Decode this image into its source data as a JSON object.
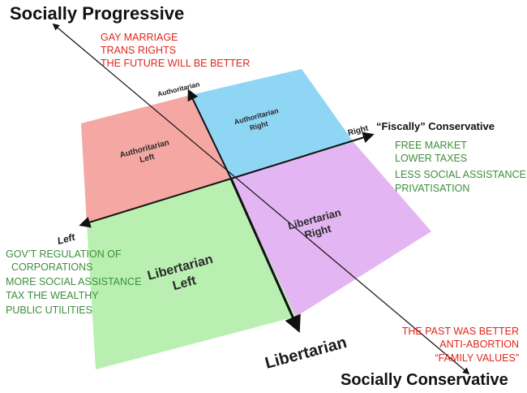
{
  "headings": {
    "top": "Socially Progressive",
    "bottom": "Socially Conservative",
    "right_axis": "“Fiscally” Conservative"
  },
  "axis_labels": {
    "authoritarian": "Authoritarian",
    "right": "Right",
    "left": "Left",
    "libertarian": "Libertarian"
  },
  "quadrants": {
    "authoritarian_left": {
      "line1": "Authoritarian",
      "line2": "Left",
      "color": "#f4a7a3"
    },
    "authoritarian_right": {
      "line1": "Authoritarian",
      "line2": "Right",
      "color": "#8fd6f4"
    },
    "libertarian_left": {
      "line1": "Libertarian",
      "line2": "Left",
      "color": "#b9f0b1"
    },
    "libertarian_right": {
      "line1": "Libertarian",
      "line2": "Right",
      "color": "#e3b5f2"
    }
  },
  "notes": {
    "progressive": {
      "color": "#e0261b",
      "lines": [
        "GAY MARRIAGE",
        "TRANS RIGHTS",
        "THE FUTURE WILL BE BETTER"
      ]
    },
    "fiscal_right": {
      "color": "#3e8e3a",
      "lines": [
        "FREE MARKET",
        "LOWER TAXES",
        "LESS SOCIAL ASSISTANCE",
        "PRIVATISATION"
      ]
    },
    "fiscal_left": {
      "color": "#3e8e3a",
      "lines": [
        "GOV’T REGULATION OF",
        "CORPORATIONS",
        "MORE SOCIAL ASSISTANCE",
        "TAX THE WEALTHY",
        "PUBLIC UTILITIES"
      ]
    },
    "conservative": {
      "color": "#e0261b",
      "lines": [
        "THE PAST WAS BETTER",
        "ANTI-ABORTION",
        "“FAMILY VALUES”"
      ]
    }
  }
}
